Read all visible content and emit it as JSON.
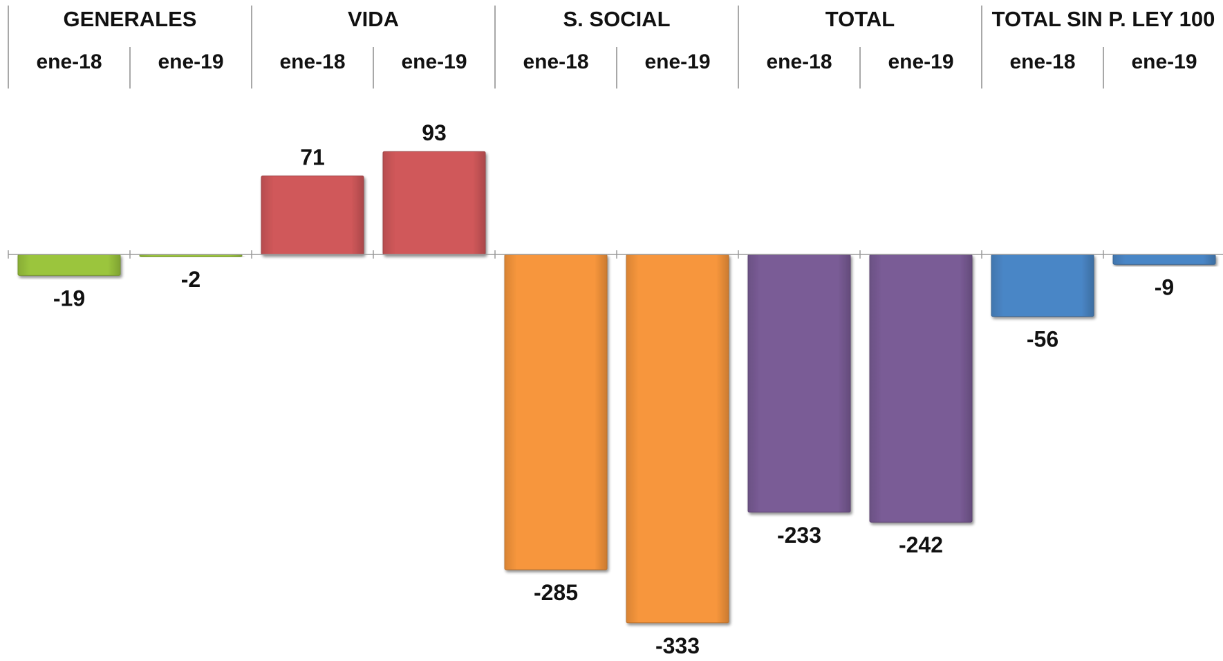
{
  "chart_data": {
    "type": "bar",
    "title": "",
    "xlabel": "",
    "ylabel": "",
    "groups": [
      {
        "label": "GENERALES",
        "color": "#9BC53D",
        "periods": [
          "ene-18",
          "ene-19"
        ],
        "values": [
          -19,
          -2
        ]
      },
      {
        "label": "VIDA",
        "color": "#D0585A",
        "periods": [
          "ene-18",
          "ene-19"
        ],
        "values": [
          71,
          93
        ]
      },
      {
        "label": "S. SOCIAL",
        "color": "#F7963C",
        "periods": [
          "ene-18",
          "ene-19"
        ],
        "values": [
          -285,
          -333
        ]
      },
      {
        "label": "TOTAL",
        "color": "#7A5C96",
        "periods": [
          "ene-18",
          "ene-19"
        ],
        "values": [
          -233,
          -242
        ]
      },
      {
        "label": "TOTAL SIN P. LEY 100",
        "color": "#4A86C6",
        "periods": [
          "ene-18",
          "ene-19"
        ],
        "values": [
          -56,
          -9
        ]
      }
    ],
    "ylim": [
      -340,
      100
    ],
    "grid": false,
    "legend": "none"
  }
}
